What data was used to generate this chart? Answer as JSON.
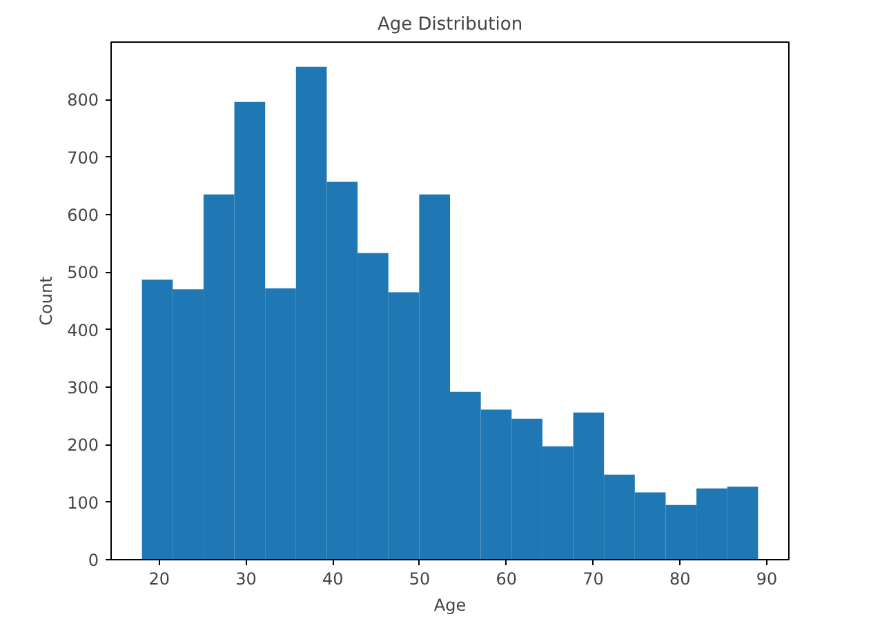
{
  "chart_data": {
    "type": "histogram",
    "title": "Age Distribution",
    "xlabel": "Age",
    "ylabel": "Count",
    "bins": [
      18,
      21.55,
      25.1,
      28.65,
      32.2,
      35.75,
      39.3,
      42.85,
      46.4,
      49.95,
      53.5,
      57.05,
      60.6,
      64.15,
      67.7,
      71.25,
      74.8,
      78.35,
      81.9,
      85.45,
      89
    ],
    "values": [
      487,
      470,
      635,
      796,
      472,
      857,
      657,
      533,
      465,
      635,
      292,
      261,
      245,
      197,
      256,
      148,
      117,
      95,
      124,
      127
    ],
    "color": "#1f77b4",
    "xlim": [
      14.45,
      92.55
    ],
    "ylim": [
      0,
      900
    ],
    "xticks": [
      20,
      30,
      40,
      50,
      60,
      70,
      80,
      90
    ],
    "yticks": [
      0,
      100,
      200,
      300,
      400,
      500,
      600,
      700,
      800
    ],
    "grid": false
  }
}
